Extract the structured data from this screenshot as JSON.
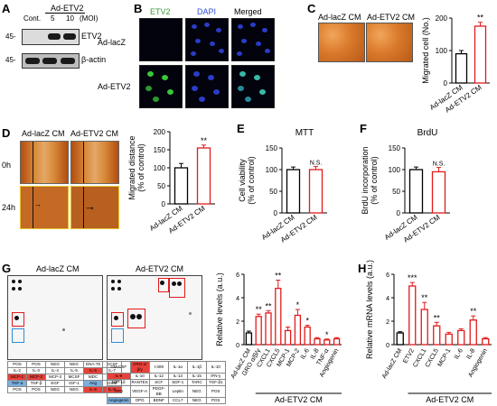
{
  "panels": {
    "A": {
      "letter": "A",
      "top_label": "Ad-ETV2",
      "lane_labels": [
        "Cont.",
        "5",
        "10"
      ],
      "moi_label": "(MOI)",
      "markers": [
        "45-",
        "45-"
      ],
      "bands": [
        "ETV2",
        "β-actin"
      ]
    },
    "B": {
      "letter": "B",
      "columns": [
        "ETV2",
        "DAPI",
        "Merged"
      ],
      "rows": [
        "Ad-lacZ",
        "Ad-ETV2"
      ]
    },
    "C": {
      "letter": "C",
      "image_labels": [
        "Ad-lacZ CM",
        "Ad-ETV2 CM"
      ]
    },
    "D": {
      "letter": "D",
      "image_labels": [
        "Ad-lacZ CM",
        "Ad-ETV2 CM"
      ],
      "time_labels": [
        "0h",
        "24h"
      ]
    },
    "E": {
      "letter": "E"
    },
    "F": {
      "letter": "F"
    },
    "G": {
      "letter": "G",
      "array_labels": [
        "Ad-lacZ CM",
        "Ad-ETV2 CM"
      ],
      "table_rows": [
        [
          "POS",
          "POS",
          "NEG",
          "NEG",
          "ENA-78",
          "GCSF"
        ],
        [
          "IL-2",
          "IL-3",
          "IL-4",
          "IL-5",
          "IL-6",
          "IL-7"
        ],
        [
          "MCP-1",
          "MCP-2",
          "MCP-3",
          "MCSF",
          "MDC",
          "MIG"
        ],
        [
          "TNF-α",
          "TNF-β",
          "EGF",
          "IGF-1",
          "Ang",
          "OSM"
        ],
        [
          "POS",
          "POS",
          "NEG",
          "NEG",
          "IL-6",
          "IL-8"
        ]
      ],
      "table_rows_right": [
        [
          "GM-CSF",
          "GRO α/β/γ",
          "I-309",
          "IL-1α",
          "IL-1β",
          "IL-10"
        ],
        [
          "IL-8",
          "IL-10",
          "IL-12",
          "IL-13",
          "IL-15",
          "IFN-γ"
        ],
        [
          "MIP-1δ",
          "RANTES",
          "SCF",
          "SDF-1",
          "TARC",
          "TGF-β1"
        ],
        [
          "TPO",
          "VEGF-A",
          "PDGF-BB",
          "Leptin",
          "NEG",
          "POS"
        ],
        [
          "Angiogenin",
          "OPG",
          "BDNF",
          "CCL7",
          "NEG",
          "POS"
        ]
      ]
    },
    "H": {
      "letter": "H"
    }
  },
  "chart_data": [
    {
      "id": "C",
      "type": "bar",
      "categories": [
        "Ad-lacZ CM",
        "Ad-ETV2 CM"
      ],
      "values": [
        90,
        175
      ],
      "errors": [
        10,
        12
      ],
      "ylabel": "Migrated cell (No.)",
      "ylim": [
        0,
        200
      ],
      "yticks": [
        0,
        100,
        200
      ],
      "significance": [
        "",
        "**"
      ],
      "colors": [
        "#000000",
        "#e21a1a"
      ]
    },
    {
      "id": "D",
      "type": "bar",
      "categories": [
        "Ad-lacZ CM",
        "Ad-ETV2 CM"
      ],
      "values": [
        100,
        155
      ],
      "errors": [
        12,
        8
      ],
      "ylabel": "Migrated distance\n(% of control)",
      "ylim": [
        0,
        200
      ],
      "yticks": [
        0,
        50,
        100,
        150,
        200
      ],
      "significance": [
        "",
        "**"
      ],
      "colors": [
        "#000000",
        "#e21a1a"
      ]
    },
    {
      "id": "E",
      "type": "bar",
      "title": "MTT",
      "categories": [
        "Ad-lacZ CM",
        "Ad-ETV2 CM"
      ],
      "values": [
        100,
        100
      ],
      "errors": [
        6,
        7
      ],
      "ylabel": "Cell viability\n(% of control)",
      "ylim": [
        0,
        150
      ],
      "yticks": [
        0,
        50,
        100,
        150
      ],
      "significance": [
        "",
        "N.S."
      ],
      "colors": [
        "#000000",
        "#e21a1a"
      ]
    },
    {
      "id": "F",
      "type": "bar",
      "title": "BrdU",
      "categories": [
        "Ad-lacZ CM",
        "Ad-ETV2 CM"
      ],
      "values": [
        100,
        95
      ],
      "errors": [
        6,
        10
      ],
      "ylabel": "BrdU incorporation\n(% of control)",
      "ylim": [
        0,
        150
      ],
      "yticks": [
        0,
        50,
        100,
        150
      ],
      "significance": [
        "",
        "N.S."
      ],
      "colors": [
        "#000000",
        "#e21a1a"
      ]
    },
    {
      "id": "G",
      "type": "bar",
      "categories": [
        "Ad-lacZ CM",
        "GRO α/β/γ",
        "CXCL1",
        "CXCL5",
        "MCP-1",
        "MCP-2",
        "IL-6",
        "IL-8",
        "TNF-α",
        "Angiogenin"
      ],
      "values": [
        1.0,
        2.4,
        2.7,
        4.8,
        1.2,
        2.5,
        1.5,
        0.5,
        0.4,
        0.5
      ],
      "errors": [
        0.15,
        0.2,
        0.2,
        0.7,
        0.3,
        0.5,
        0.15,
        0.1,
        0.08,
        0.1
      ],
      "ylabel": "Relative levels (a.u.)",
      "ylim": [
        0,
        6
      ],
      "yticks": [
        0,
        2,
        4,
        6
      ],
      "significance": [
        "",
        "**",
        "**",
        "**",
        "",
        "*",
        "*",
        "",
        "*",
        ""
      ],
      "group_label": "Ad-ETV2 CM",
      "group_start": 1,
      "colors": [
        "#000000",
        "#e21a1a"
      ]
    },
    {
      "id": "H",
      "type": "bar",
      "categories": [
        "Ad-lacZ CM",
        "ETV2",
        "CXCL1",
        "CXCL5",
        "MCP-1",
        "IL-6",
        "IL-8",
        "Angiogenin"
      ],
      "values": [
        1.0,
        5.0,
        3.0,
        1.6,
        0.9,
        1.2,
        2.1,
        0.5
      ],
      "errors": [
        0.1,
        0.3,
        0.6,
        0.3,
        0.15,
        0.15,
        0.35,
        0.1
      ],
      "ylabel": "Relative mRNA levels (a.u.)",
      "ylim": [
        0,
        6
      ],
      "yticks": [
        0,
        2,
        4,
        6
      ],
      "significance": [
        "",
        "***",
        "**",
        "**",
        "",
        "",
        "**",
        ""
      ],
      "group_label": "Ad-ETV2 CM",
      "group_start": 1,
      "colors": [
        "#000000",
        "#e21a1a"
      ]
    }
  ]
}
